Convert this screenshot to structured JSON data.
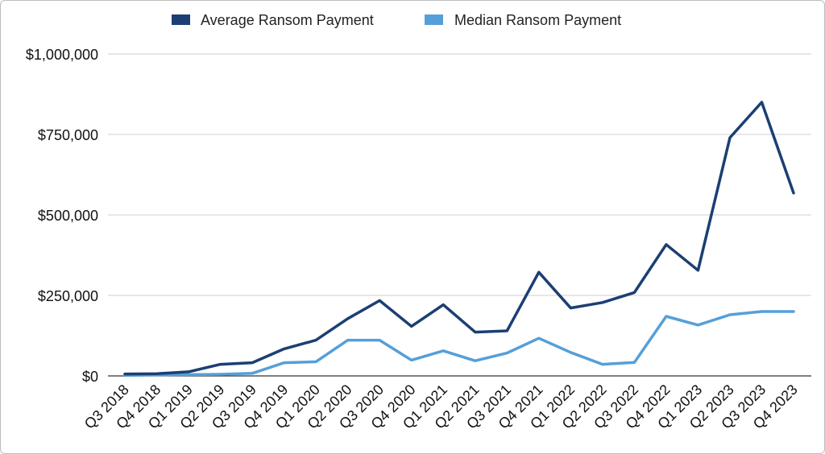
{
  "chart_data": {
    "type": "line",
    "title": "",
    "xlabel": "",
    "ylabel": "",
    "categories": [
      "Q3 2018",
      "Q4 2018",
      "Q1 2019",
      "Q2 2019",
      "Q3 2019",
      "Q4 2019",
      "Q1 2020",
      "Q2 2020",
      "Q3 2020",
      "Q4 2020",
      "Q1 2021",
      "Q2 2021",
      "Q3 2021",
      "Q4 2021",
      "Q1 2022",
      "Q2 2022",
      "Q3 2022",
      "Q4 2022",
      "Q1 2023",
      "Q2 2023",
      "Q3 2023",
      "Q4 2023"
    ],
    "series": [
      {
        "name": "Average Ransom Payment",
        "color": "#1b3f73",
        "values": [
          6000,
          7000,
          12800,
          36000,
          41000,
          84000,
          111000,
          178000,
          234000,
          154000,
          221000,
          136000,
          140000,
          322000,
          211000,
          228000,
          259000,
          408000,
          328000,
          740000,
          850000,
          568000
        ]
      },
      {
        "name": "Median Ransom Payment",
        "color": "#559fd8",
        "values": [
          2000,
          3000,
          4000,
          5000,
          8000,
          41000,
          44000,
          111000,
          111000,
          49000,
          78000,
          47000,
          71000,
          117000,
          73000,
          36000,
          42000,
          185000,
          158000,
          190000,
          200000,
          200000
        ]
      }
    ],
    "ylim": [
      0,
      1000000
    ],
    "yticks": [
      0,
      250000,
      500000,
      750000,
      1000000
    ],
    "ytick_labels": [
      "$0",
      "$250,000",
      "$500,000",
      "$750,000",
      "$1,000,000"
    ],
    "grid": true,
    "legend_position": "top"
  }
}
